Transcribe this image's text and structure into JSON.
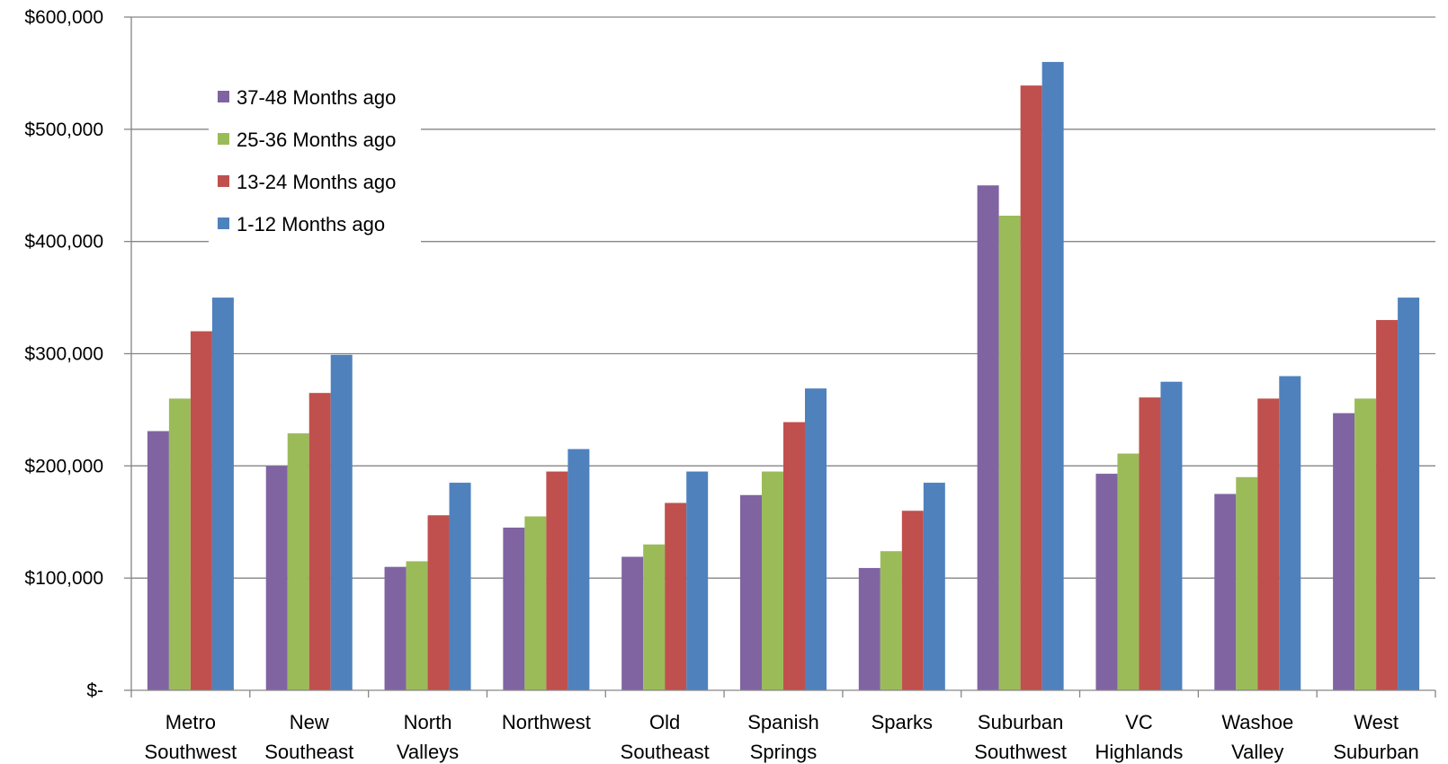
{
  "chart_data": {
    "type": "bar",
    "title": "",
    "xlabel": "",
    "ylabel": "",
    "ylim": [
      0,
      600000
    ],
    "grid": true,
    "legend_placement": "top-left",
    "y_ticks": [
      {
        "value": 0,
        "label": "$-"
      },
      {
        "value": 100000,
        "label": "$100,000"
      },
      {
        "value": 200000,
        "label": "$200,000"
      },
      {
        "value": 300000,
        "label": "$300,000"
      },
      {
        "value": 400000,
        "label": "$400,000"
      },
      {
        "value": 500000,
        "label": "$500,000"
      },
      {
        "value": 600000,
        "label": "$600,000"
      }
    ],
    "categories": [
      [
        "Metro",
        "Southwest"
      ],
      [
        "New",
        "Southeast"
      ],
      [
        "North",
        "Valleys"
      ],
      [
        "Northwest"
      ],
      [
        "Old",
        "Southeast"
      ],
      [
        "Spanish",
        "Springs"
      ],
      [
        "Sparks"
      ],
      [
        "Suburban",
        "Southwest"
      ],
      [
        "VC",
        "Highlands"
      ],
      [
        "Washoe",
        "Valley"
      ],
      [
        "West",
        "Suburban"
      ]
    ],
    "series": [
      {
        "name": "37-48 Months ago",
        "color": "#8064A2",
        "values": [
          231000,
          200000,
          110000,
          145000,
          119000,
          174000,
          109000,
          450000,
          193000,
          175000,
          247000
        ]
      },
      {
        "name": "25-36 Months ago",
        "color": "#9BBB59",
        "values": [
          260000,
          229000,
          115000,
          155000,
          130000,
          195000,
          124000,
          423000,
          211000,
          190000,
          260000
        ]
      },
      {
        "name": "13-24 Months ago",
        "color": "#C0504D",
        "values": [
          320000,
          265000,
          156000,
          195000,
          167000,
          239000,
          160000,
          539000,
          261000,
          260000,
          330000
        ]
      },
      {
        "name": "1-12 Months ago",
        "color": "#4F81BD",
        "values": [
          350000,
          299000,
          185000,
          215000,
          195000,
          269000,
          185000,
          560000,
          275000,
          280000,
          350000
        ]
      }
    ]
  }
}
